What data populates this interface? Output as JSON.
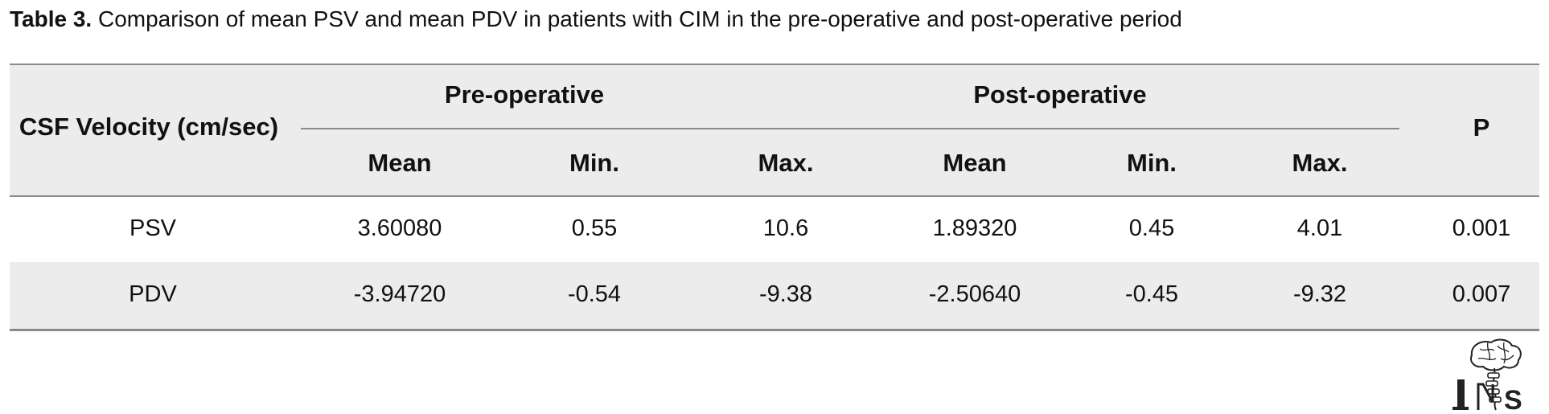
{
  "caption": {
    "label": "Table 3.",
    "text": "Comparison of mean PSV and mean PDV in patients with CIM in the pre-operative and post-operative period"
  },
  "table": {
    "row_header": "CSF Velocity (cm/sec)",
    "groups": [
      "Pre-operative",
      "Post-operative"
    ],
    "subheaders": [
      "Mean",
      "Min.",
      "Max.",
      "Mean",
      "Min.",
      "Max."
    ],
    "p_header": "P",
    "rows": [
      {
        "label": "PSV",
        "values": [
          "3.60080",
          "0.55",
          "10.6",
          "1.89320",
          "0.45",
          "4.01"
        ],
        "p": "0.001"
      },
      {
        "label": "PDV",
        "values": [
          "-3.94720",
          "-0.54",
          "-9.38",
          "-2.50640",
          "-0.45",
          "-9.32"
        ],
        "p": "0.007"
      }
    ]
  },
  "logo": {
    "text": "INS",
    "icon": "brain-spine-logo-icon"
  }
}
